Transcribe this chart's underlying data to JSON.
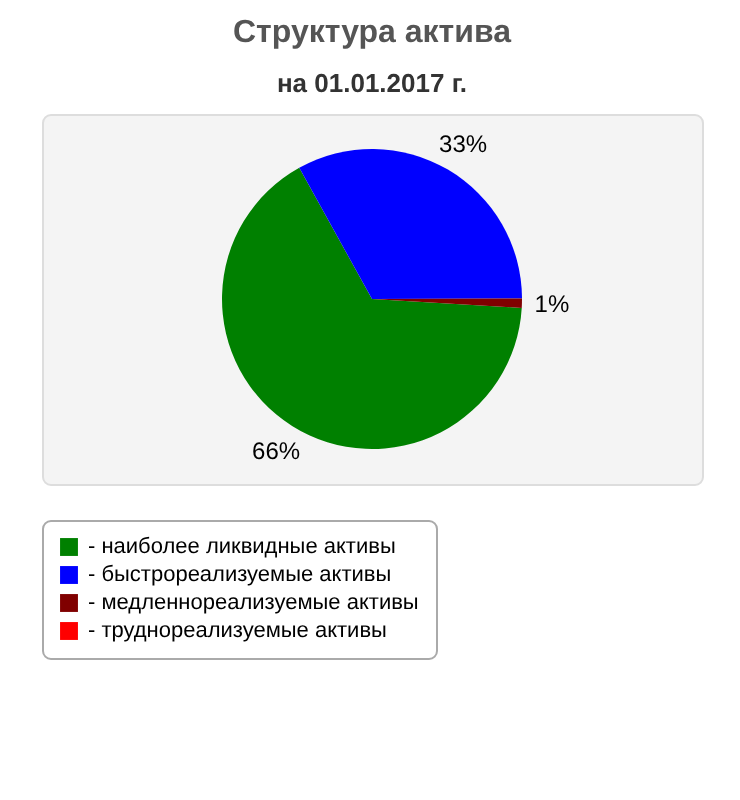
{
  "chart_data": {
    "type": "pie",
    "title": "Структура актива",
    "subtitle": "на 01.01.2017 г.",
    "categories": [
      "- наиболее ликвидные активы",
      "- быстрореализуемые активы",
      "- медленнореализуемые активы",
      "- труднореализуемые активы"
    ],
    "values": [
      66,
      33,
      1,
      0
    ],
    "colors": [
      "#008000",
      "#0000ff",
      "#800000",
      "#ff0000"
    ],
    "value_labels": [
      "66%",
      "33%",
      "1%",
      null
    ],
    "legend": "bottom"
  }
}
